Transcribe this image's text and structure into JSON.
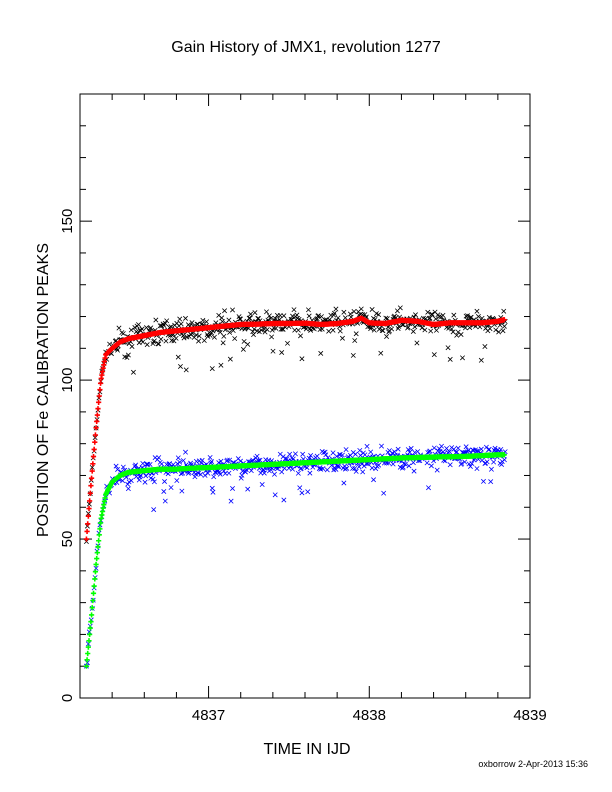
{
  "chart_data": {
    "type": "scatter",
    "title": "Gain History of JMX1, revolution 1277",
    "xlabel": "TIME IN IJD",
    "ylabel": "POSITION OF Fe CALIBRATION PEAKS",
    "xlim": [
      4836.2,
      4839.0
    ],
    "ylim": [
      0,
      190
    ],
    "x_ticks": [
      4837,
      4838,
      4839
    ],
    "y_ticks": [
      0,
      50,
      100,
      150
    ],
    "grid": false,
    "legend": "none",
    "colors": {
      "upper_raw": "#000000",
      "upper_fit": "#ff0000",
      "lower_raw": "#0000ff",
      "lower_fit": "#00ff00"
    },
    "series": [
      {
        "role": "upper_fit",
        "marker": "plus",
        "x": [
          4836.24,
          4836.27,
          4836.3,
          4836.33,
          4836.36,
          4836.4,
          4836.45,
          4836.5,
          4836.6,
          4836.7,
          4836.8,
          4836.9,
          4837.0,
          4837.1,
          4837.2,
          4837.3,
          4837.4,
          4837.5,
          4837.6,
          4837.7,
          4837.8,
          4837.9,
          4837.95,
          4838.0,
          4838.1,
          4838.2,
          4838.3,
          4838.4,
          4838.5,
          4838.6,
          4838.7,
          4838.8,
          4838.84
        ],
        "y": [
          50,
          68,
          85,
          100,
          108,
          110,
          112,
          113,
          114,
          115,
          115.5,
          116,
          116.5,
          117,
          117.5,
          117.6,
          117.8,
          117.8,
          117.9,
          117.5,
          117.8,
          118.5,
          119.5,
          118,
          117.8,
          118.8,
          118.5,
          117.5,
          118,
          118,
          118,
          118.5,
          119
        ]
      },
      {
        "role": "upper_raw",
        "marker": "x",
        "x_range": [
          4836.42,
          4838.85
        ],
        "y_mean": 117.5,
        "y_spread": 3.5
      },
      {
        "role": "lower_fit",
        "marker": "plus",
        "x": [
          4836.24,
          4836.27,
          4836.3,
          4836.33,
          4836.36,
          4836.4,
          4836.45,
          4836.5,
          4836.6,
          4836.7,
          4836.8,
          4836.9,
          4837.0,
          4837.2,
          4837.4,
          4837.6,
          4837.8,
          4838.0,
          4838.2,
          4838.4,
          4838.6,
          4838.8,
          4838.84
        ],
        "y": [
          10,
          25,
          42,
          56,
          64,
          68,
          70,
          71,
          71.5,
          72,
          72,
          72.3,
          72.5,
          73,
          73.5,
          74,
          74.5,
          75,
          75.5,
          75.8,
          76,
          76.5,
          76.5
        ]
      },
      {
        "role": "lower_raw",
        "marker": "x",
        "x_range": [
          4836.42,
          4838.85
        ],
        "y_mean": 74.5,
        "y_spread": 3.5
      }
    ]
  },
  "footer": {
    "signature": "oxborrow  2-Apr-2013 15:36"
  }
}
